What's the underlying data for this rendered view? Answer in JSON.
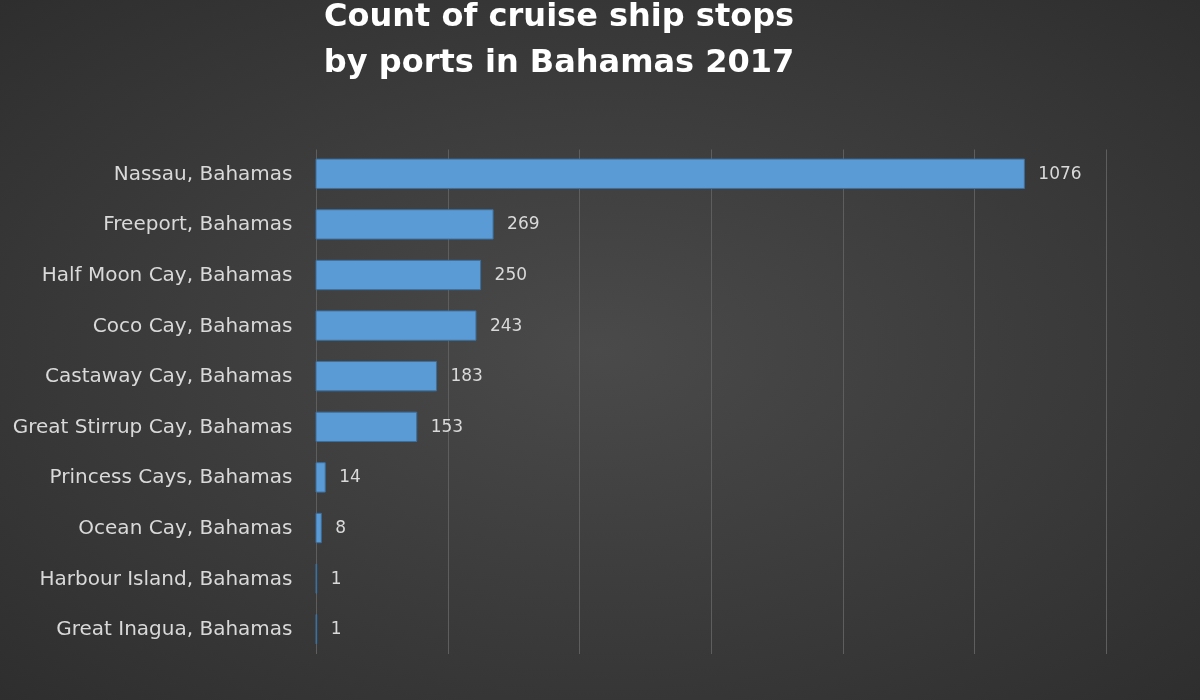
{
  "chart_data": {
    "type": "bar",
    "orientation": "horizontal",
    "title": "Count of cruise ship stops by ports in Bahamas 2017",
    "categories": [
      "Nassau, Bahamas",
      "Freeport, Bahamas",
      "Half Moon Cay, Bahamas",
      "Coco Cay, Bahamas",
      "Castaway Cay, Bahamas",
      "Great Stirrup Cay, Bahamas",
      "Princess Cays, Bahamas",
      "Ocean Cay, Bahamas",
      "Harbour Island, Bahamas",
      "Great Inagua, Bahamas"
    ],
    "values": [
      1076,
      269,
      250,
      243,
      183,
      153,
      14,
      8,
      1,
      1
    ],
    "color": "#5b9bd5",
    "xlim": [
      0,
      1200
    ],
    "xticks": [
      {
        "value": 0,
        "label": null
      },
      {
        "value": 200,
        "label": null
      },
      {
        "value": 400,
        "label": null
      },
      {
        "value": 600,
        "label": null
      },
      {
        "value": 800,
        "label": null
      },
      {
        "value": 1000,
        "label": null
      },
      {
        "value": 1200,
        "label": null
      }
    ],
    "grid": "x",
    "tick_labels": "y",
    "data_labels": true
  }
}
